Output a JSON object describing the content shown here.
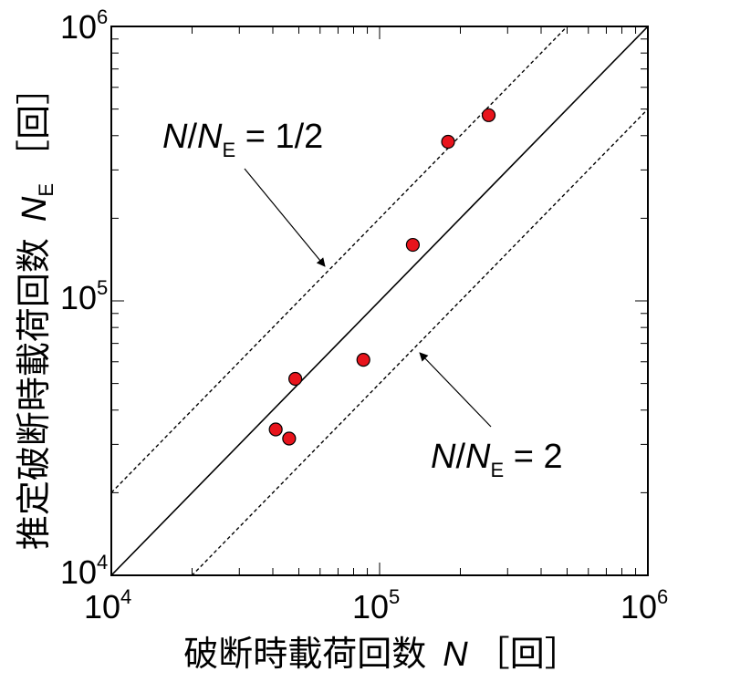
{
  "chart_data": {
    "type": "scatter",
    "x_scale": "log",
    "y_scale": "log",
    "xlim": [
      10000,
      1000000
    ],
    "ylim": [
      10000,
      1000000
    ],
    "grid": false,
    "xlabel": "破断時載荷回数",
    "xlabel_symbol": "N",
    "xlabel_unit": "［回］",
    "ylabel": "推定破断時載荷回数",
    "ylabel_symbol": "N",
    "ylabel_symbol_sub": "E",
    "ylabel_unit": "［回］",
    "x_ticks": [
      {
        "value": 10000,
        "base": "10",
        "exp": "4"
      },
      {
        "value": 100000,
        "base": "10",
        "exp": "5"
      },
      {
        "value": 1000000,
        "base": "10",
        "exp": "6"
      }
    ],
    "y_ticks": [
      {
        "value": 10000,
        "base": "10",
        "exp": "4"
      },
      {
        "value": 100000,
        "base": "10",
        "exp": "5"
      },
      {
        "value": 1000000,
        "base": "10",
        "exp": "6"
      }
    ],
    "marker_color": "#e8141c",
    "points": [
      {
        "x": 41000,
        "y": 34000
      },
      {
        "x": 46000,
        "y": 31500
      },
      {
        "x": 48500,
        "y": 52000
      },
      {
        "x": 87000,
        "y": 61000
      },
      {
        "x": 133000,
        "y": 160000
      },
      {
        "x": 180000,
        "y": 380000
      },
      {
        "x": 255000,
        "y": 475000
      }
    ],
    "reference_lines": [
      {
        "ratio": 1,
        "style": "solid"
      },
      {
        "ratio": 0.5,
        "style": "dashed"
      },
      {
        "ratio": 2,
        "style": "dashed"
      }
    ],
    "annotations": [
      {
        "n": "N",
        "slash": "/",
        "n2": "N",
        "sub": "E",
        "eq": " = ",
        "value": "1/2"
      },
      {
        "n": "N",
        "slash": "/",
        "n2": "N",
        "sub": "E",
        "eq": " = ",
        "value": "2"
      }
    ]
  }
}
